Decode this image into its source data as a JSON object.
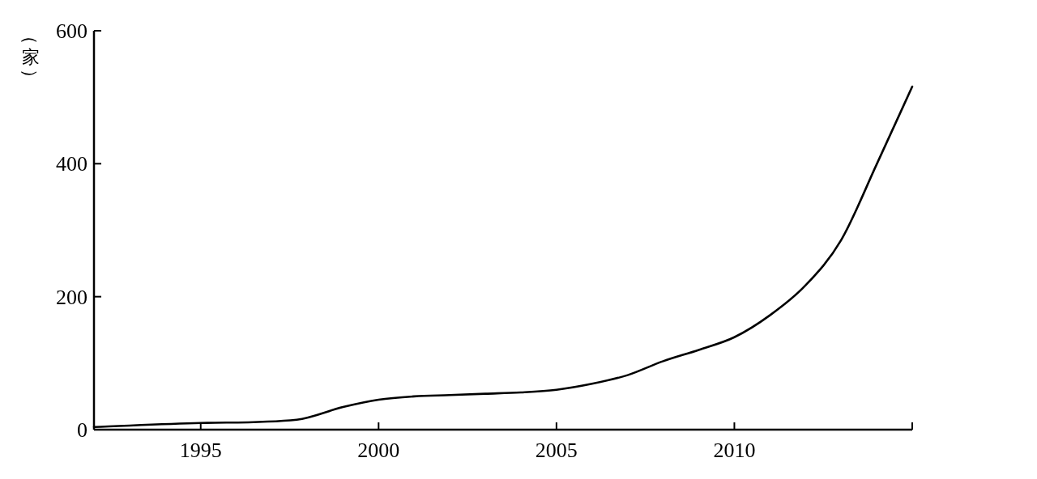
{
  "chart_data": {
    "type": "line",
    "ylabel": "（家）",
    "x": [
      1992,
      1995,
      1997.7,
      1999,
      2000,
      2001,
      2002,
      2003,
      2004,
      2005,
      2006,
      2007,
      2008,
      2009,
      2010,
      2011,
      2012,
      2013,
      2014,
      2015
    ],
    "series": [
      {
        "color": "#000000",
        "values": [
          4,
          10,
          15,
          34,
          45,
          50,
          52,
          54,
          56,
          60,
          69,
          82,
          103,
          120,
          139,
          172,
          217,
          285,
          399,
          516
        ]
      }
    ],
    "xlim": [
      1992,
      2015
    ],
    "xticks": [
      1995,
      2000,
      2005,
      2010,
      {
        "value": 2015,
        "label": null
      }
    ],
    "ylim": [
      0,
      600
    ],
    "yticks": [
      0,
      200,
      400,
      600
    ],
    "grid": false,
    "marker": "none",
    "line_style": "solid"
  }
}
